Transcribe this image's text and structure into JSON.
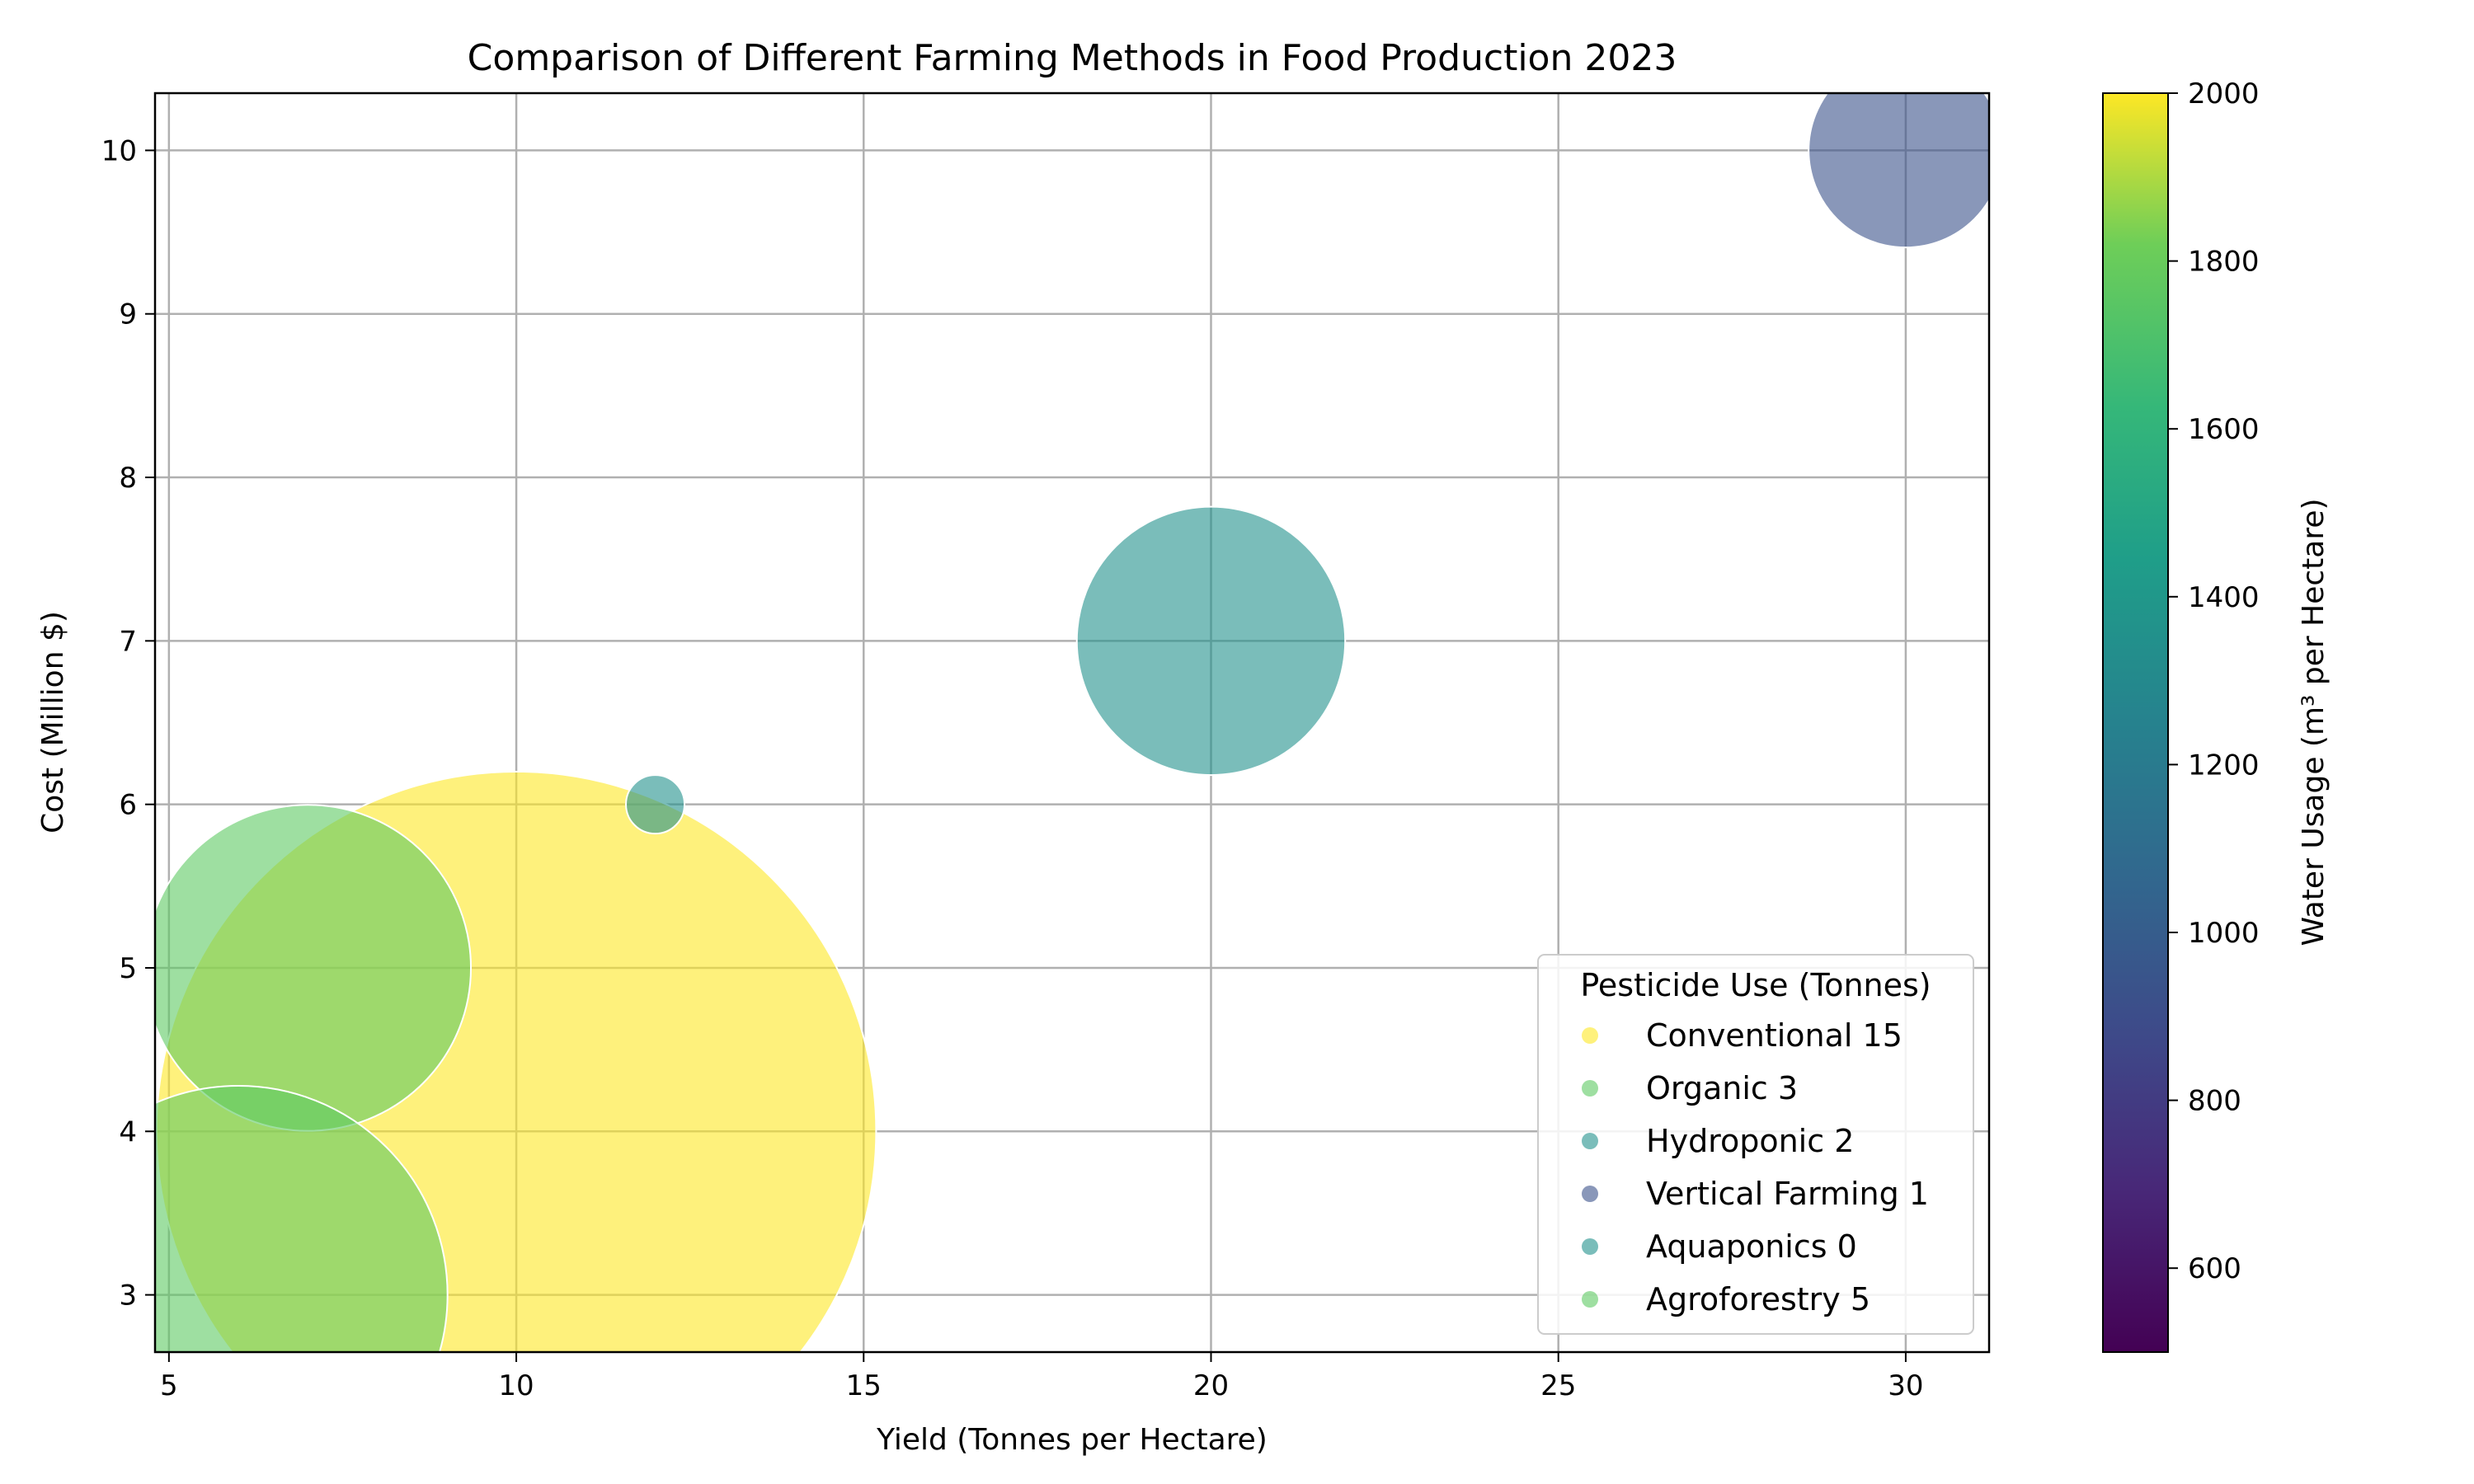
{
  "chart_data": {
    "type": "scatter",
    "title": "Comparison of Different Farming Methods in Food Production 2023",
    "xlabel": "Yield (Tonnes per Hectare)",
    "ylabel": "Cost (Million $)",
    "xlim": [
      4.8,
      31.2
    ],
    "ylim": [
      2.65,
      10.35
    ],
    "xticks": [
      5,
      10,
      15,
      20,
      25,
      30
    ],
    "yticks": [
      3,
      4,
      5,
      6,
      7,
      8,
      9,
      10
    ],
    "grid": true,
    "legend": {
      "title": "Pesticide Use (Tonnes)",
      "placement": "lower-right",
      "entries": [
        "Conventional 15",
        "Organic 3",
        "Hydroponic 2",
        "Vertical Farming 1",
        "Aquaponics 0",
        "Agroforestry 5"
      ]
    },
    "colorbar": {
      "label": "Water Usage (m³ per Hectare)",
      "range": [
        500,
        2000
      ],
      "ticks": [
        600,
        800,
        1000,
        1200,
        1400,
        1600,
        1800,
        2000
      ],
      "colormap": "viridis"
    },
    "points": [
      {
        "name": "Conventional",
        "x": 10,
        "y": 4,
        "pesticide": 15,
        "water": 2000,
        "color": "#fde725"
      },
      {
        "name": "Organic",
        "x": 7,
        "y": 5,
        "pesticide": 3,
        "water": 1650,
        "color": "#5ec962"
      },
      {
        "name": "Hydroponic",
        "x": 20,
        "y": 7,
        "pesticide": 2,
        "water": 1250,
        "color": "#21918c"
      },
      {
        "name": "Vertical Farming",
        "x": 30,
        "y": 10,
        "pesticide": 1,
        "water": 850,
        "color": "#3b528b"
      },
      {
        "name": "Aquaponics",
        "x": 12,
        "y": 6,
        "pesticide": 0,
        "water": 1250,
        "color": "#21918c"
      },
      {
        "name": "Agroforestry",
        "x": 6,
        "y": 3,
        "pesticide": 5,
        "water": 1650,
        "color": "#5ec962"
      }
    ]
  }
}
